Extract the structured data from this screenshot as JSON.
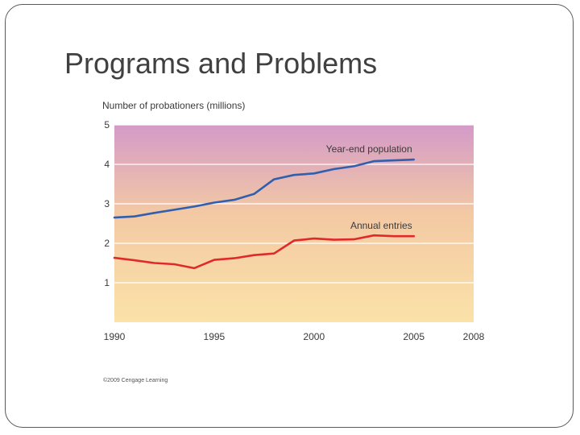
{
  "slide": {
    "title": "Programs and Problems"
  },
  "chart_data": {
    "type": "line",
    "ylabel": "Number of probationers (millions)",
    "xlabel": "",
    "xlim": [
      1990,
      2008
    ],
    "ylim": [
      0,
      5
    ],
    "x_ticks": [
      1990,
      1995,
      2000,
      2005,
      2008
    ],
    "y_ticks": [
      1,
      2,
      3,
      4,
      5
    ],
    "grid": "horizontal",
    "background_gradient": [
      "#d49ac8",
      "#f3c9a4",
      "#fbe2a8"
    ],
    "series": [
      {
        "name": "Year-end population",
        "color": "#2f5fae",
        "x": [
          1990,
          1991,
          1992,
          1993,
          1994,
          1995,
          1996,
          1997,
          1998,
          1999,
          2000,
          2001,
          2002,
          2003,
          2004,
          2005
        ],
        "y": [
          2.65,
          2.68,
          2.77,
          2.85,
          2.93,
          3.03,
          3.1,
          3.25,
          3.62,
          3.73,
          3.77,
          3.88,
          3.95,
          4.08,
          4.1,
          4.12
        ]
      },
      {
        "name": "Annual entries",
        "color": "#e02a2a",
        "x": [
          1990,
          1991,
          1992,
          1993,
          1994,
          1995,
          1996,
          1997,
          1998,
          1999,
          2000,
          2001,
          2002,
          2003,
          2004,
          2005
        ],
        "y": [
          1.63,
          1.57,
          1.5,
          1.47,
          1.37,
          1.58,
          1.62,
          1.7,
          1.74,
          2.07,
          2.12,
          2.09,
          2.1,
          2.2,
          2.18,
          2.18
        ]
      }
    ],
    "credit": "©2009 Cengage Learning"
  }
}
